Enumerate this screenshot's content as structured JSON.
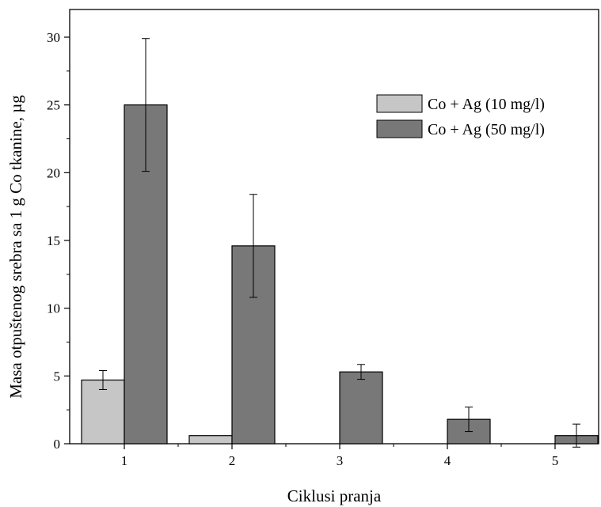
{
  "chart_data": {
    "type": "bar",
    "title": "",
    "xlabel": "Ciklusi pranja",
    "ylabel": "Masa otpuštenog srebra sa 1 g Co tkanine, µg",
    "categories": [
      "1",
      "2",
      "3",
      "4",
      "5"
    ],
    "ylim": [
      0,
      32
    ],
    "yticks": [
      "0",
      "5",
      "10",
      "15",
      "20",
      "25",
      "30"
    ],
    "grid": false,
    "legend_position": "top-right",
    "series": [
      {
        "name": "Co + Ag (10 mg/l)",
        "color": "#c6c6c6",
        "values": [
          4.7,
          0.6,
          0,
          0,
          0
        ],
        "errors": [
          0.7,
          null,
          null,
          null,
          null
        ]
      },
      {
        "name": "Co + Ag (50 mg/l)",
        "color": "#787878",
        "values": [
          25.0,
          14.6,
          5.3,
          1.8,
          0.6
        ],
        "errors": [
          4.9,
          3.8,
          0.55,
          0.9,
          0.85
        ]
      }
    ]
  }
}
